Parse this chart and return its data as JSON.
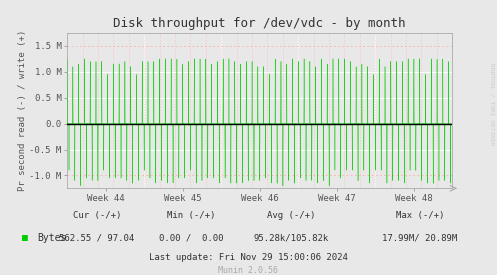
{
  "title": "Disk throughput for /dev/vdc - by month",
  "ylabel": "Pr second read (-) / write (+)",
  "x_tick_labels": [
    "Week 44",
    "Week 45",
    "Week 46",
    "Week 47",
    "Week 48"
  ],
  "ylim": [
    -1250000,
    1750000
  ],
  "yticks": [
    -1000000,
    -500000,
    0,
    500000,
    1000000,
    1500000
  ],
  "ytick_labels": [
    "-1.0 M",
    "-0.5 M",
    "0.0",
    "0.5 M",
    "1.0 M",
    "1.5 M"
  ],
  "bg_color": "#e8e8e8",
  "plot_bg_color": "#e8e8e8",
  "line_color": "#00cc00",
  "zero_line_color": "#000000",
  "legend_text": "Bytes",
  "legend_color": "#00cc00",
  "last_update": "Last update: Fri Nov 29 15:00:06 2024",
  "munin_version": "Munin 2.0.56",
  "rrdtool_text": "RRDTOOL / TOBI OETIKER",
  "cur_header": "Cur (-/+)",
  "min_header": "Min (-/+)",
  "avg_header": "Avg (-/+)",
  "max_header": "Max (-/+)",
  "cur_val": "562.55 / 97.04",
  "min_val": "0.00 /  0.00",
  "avg_val": "95.28k/105.82k",
  "max_val": "17.99M/ 20.89M"
}
